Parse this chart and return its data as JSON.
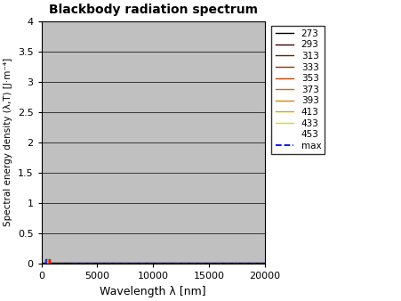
{
  "title": "Blackbody radiation spectrum",
  "xlabel": "Wavelength λ [nm]",
  "ylabel": "Spectral energy density (λ,T) [J·m⁻⁴]",
  "temperatures": [
    273,
    293,
    313,
    333,
    353,
    373,
    393,
    413,
    433,
    453
  ],
  "colors": [
    "#000000",
    "#3a0000",
    "#6b1a00",
    "#a03000",
    "#cc4400",
    "#dd6600",
    "#dd8800",
    "#ccaa00",
    "#dddd00",
    "#ffffff"
  ],
  "lambda_min": 500,
  "lambda_max": 20000,
  "lambda_points": 3000,
  "xlim": [
    0,
    20000
  ],
  "ylim": [
    0,
    4
  ],
  "yticks": [
    0,
    0.5,
    1.0,
    1.5,
    2.0,
    2.5,
    3.0,
    3.5,
    4.0
  ],
  "xticks": [
    0,
    5000,
    10000,
    15000,
    20000
  ],
  "background_color": "#c0c0c0",
  "scale_factor": 1e-13,
  "vis_colors": [
    "#8800ff",
    "#0000ff",
    "#0080ff",
    "#00ff00",
    "#ffff00",
    "#ff8000",
    "#ff0000"
  ],
  "vis_lam": [
    380,
    430,
    480,
    530,
    580,
    630,
    680,
    780
  ]
}
